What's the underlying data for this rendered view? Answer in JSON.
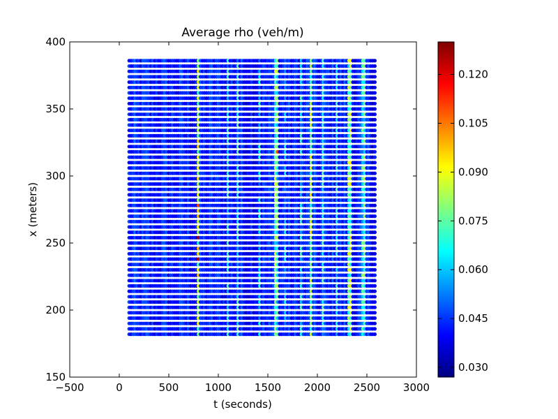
{
  "chart_data": {
    "type": "scatter",
    "title": "Average rho (veh/m)",
    "xlabel": "t (seconds)",
    "ylabel": "x (meters)",
    "xlim": [
      -500,
      3000
    ],
    "ylim": [
      150,
      400
    ],
    "xticks": [
      "-500",
      "0",
      "500",
      "1000",
      "1500",
      "2000",
      "2500",
      "3000"
    ],
    "yticks": [
      "150",
      "200",
      "250",
      "300",
      "350",
      "400"
    ],
    "grid": false,
    "colormap": "jet",
    "colorbar": {
      "range": [
        0.027,
        0.13
      ],
      "ticks": [
        "0.030",
        "0.045",
        "0.060",
        "0.075",
        "0.090",
        "0.105",
        "0.120"
      ]
    },
    "grid_spec": {
      "t_start": 100,
      "t_end": 2580,
      "t_step": 20,
      "x_start": 182,
      "x_end": 387,
      "x_step": 4
    },
    "hot_columns": [
      {
        "t": 800,
        "value": 0.085
      },
      {
        "t": 1100,
        "value": 0.06
      },
      {
        "t": 1200,
        "value": 0.063
      },
      {
        "t": 1420,
        "value": 0.055
      },
      {
        "t": 1580,
        "value": 0.075
      },
      {
        "t": 1600,
        "value": 0.07
      },
      {
        "t": 1680,
        "value": 0.055
      },
      {
        "t": 1840,
        "value": 0.06
      },
      {
        "t": 1940,
        "value": 0.08
      },
      {
        "t": 2060,
        "value": 0.062
      },
      {
        "t": 2200,
        "value": 0.06
      },
      {
        "t": 2320,
        "value": 0.075
      },
      {
        "t": 2340,
        "value": 0.08
      },
      {
        "t": 2460,
        "value": 0.065
      },
      {
        "t": 2480,
        "value": 0.07
      }
    ],
    "peak_points": [
      {
        "t": 800,
        "x": 305,
        "value": 0.125
      },
      {
        "t": 800,
        "x": 254,
        "value": 0.128
      },
      {
        "t": 800,
        "x": 238,
        "value": 0.125
      },
      {
        "t": 800,
        "x": 278,
        "value": 0.11
      },
      {
        "t": 1940,
        "x": 296,
        "value": 0.11
      },
      {
        "t": 1940,
        "x": 360,
        "value": 0.115
      },
      {
        "t": 1600,
        "x": 318,
        "value": 0.11
      },
      {
        "t": 2320,
        "x": 377,
        "value": 0.105
      }
    ]
  }
}
